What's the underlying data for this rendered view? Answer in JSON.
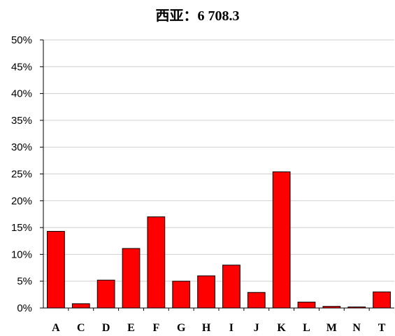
{
  "chart_data": {
    "type": "bar",
    "title": "西亚：6 708.3",
    "categories": [
      "A",
      "C",
      "D",
      "E",
      "F",
      "G",
      "H",
      "I",
      "J",
      "K",
      "L",
      "M",
      "N",
      "T"
    ],
    "values": [
      14.3,
      0.8,
      5.2,
      11.1,
      17.0,
      5.0,
      6.0,
      8.0,
      2.9,
      25.4,
      1.1,
      0.3,
      0.2,
      3.0
    ],
    "y_tick_labels": [
      "0%",
      "5%",
      "10%",
      "15%",
      "20%",
      "25%",
      "30%",
      "35%",
      "40%",
      "45%",
      "50%"
    ],
    "ylim": [
      0,
      50
    ],
    "grid": true,
    "bar_color": "#ff0000",
    "bar_edge_color": "#000000"
  }
}
